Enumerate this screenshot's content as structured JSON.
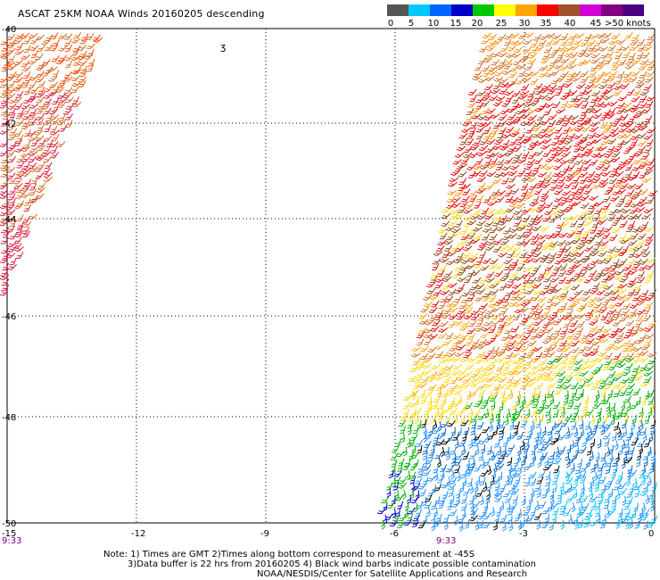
{
  "title": "ASCAT 25KM NOAA Winds 20160205 descending",
  "legend": {
    "colors": [
      "#555555",
      "#00c8ff",
      "#0064ff",
      "#0000c8",
      "#00c800",
      "#ffff00",
      "#ffa500",
      "#ff0000",
      "#a0522d",
      "#d200d2",
      "#800080",
      "#4b0082"
    ],
    "ticks": [
      "0",
      "5",
      "10",
      "15",
      "20",
      "25",
      "30",
      "35",
      "40",
      "45",
      ">50 knots"
    ]
  },
  "map": {
    "lat_labels": [
      "-40",
      "-42",
      "-44",
      "-46",
      "-48",
      "-50"
    ],
    "lon_labels": [
      "-15",
      "-12",
      "-9",
      "-6",
      "-3",
      "0"
    ],
    "times": [
      "9:33",
      "9:33"
    ],
    "ascii_plot_mark": "ʒ"
  },
  "notes": {
    "line1": "Note: 1) Times are GMT 2)Times along bottom correspond to measurement at -45S",
    "line2": "3)Data buffer is 22 hrs from 20160205 4) Black wind barbs indicate possible contamination",
    "line3": "NOAA/NESDIS/Center for Satellite Applications and Research"
  }
}
